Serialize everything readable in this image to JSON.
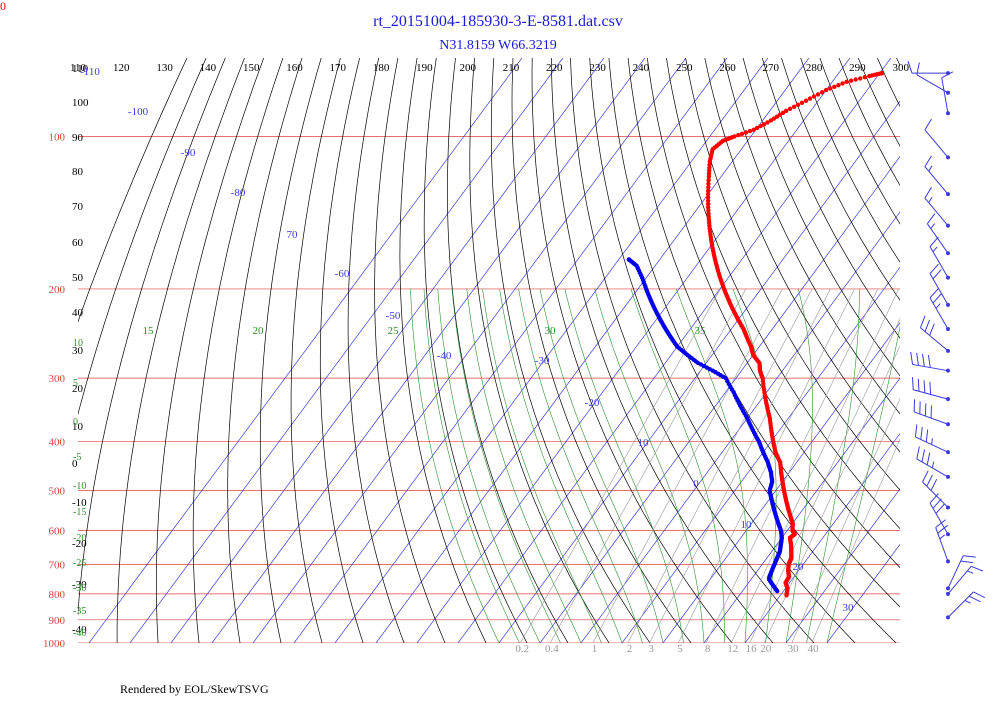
{
  "corner_label": "0",
  "footer": "Rendered by EOL/SkewTSVG",
  "chart_data": {
    "type": "skew-t log-p diagram",
    "title": "rt_20151004-185930-3-E-8581.dat.csv",
    "subtitle": "N31.8159 W66.3219",
    "colors": {
      "isobar": "#e04040",
      "isotherm": "#3b3bdc",
      "dry_adiabat": "#000000",
      "moist_adiabat": "#2f8f2f",
      "mixing_ratio": "#999999",
      "temperature": "#ff0000",
      "dewpoint": "#0000ee"
    },
    "pressure_levels_hPa": [
      "100",
      "200",
      "300",
      "400",
      "500",
      "600",
      "700",
      "800",
      "900",
      "1000"
    ],
    "isotherm_labels_C": [
      "-100",
      "-90",
      "-80",
      "70",
      "-60",
      "-50",
      "-40",
      "-30",
      "-20",
      "10",
      "0",
      "10",
      "20",
      "30"
    ],
    "theta_top_labels_K": [
      "110",
      "120",
      "130",
      "140",
      "150",
      "160",
      "170",
      "180",
      "190",
      "200",
      "210",
      "220",
      "230",
      "240",
      "250",
      "260",
      "270",
      "280",
      "290",
      "300"
    ],
    "left_dry_adiabat_labels": [
      "110",
      "100",
      "90",
      "80",
      "70",
      "60",
      "50",
      "40",
      "30",
      "20",
      "10",
      "0",
      "-10",
      "-20",
      "-30",
      "-40"
    ],
    "moist_labels": [
      "15",
      "20",
      "25",
      "30",
      "35"
    ],
    "moist_left_labels": [
      "10",
      "5",
      "0",
      "-5",
      "-10",
      "-15",
      "-20",
      "-25",
      "-30",
      "-35",
      "-40"
    ],
    "mixing_ratio_labels_gkg": [
      "0.2",
      "0.4",
      "1",
      "2",
      "3",
      "5",
      "8",
      "12",
      "16",
      "20",
      "30",
      "40"
    ],
    "temperature_profile": [
      {
        "p": 805,
        "t": 21.5
      },
      {
        "p": 780,
        "t": 20.5
      },
      {
        "p": 760,
        "t": 19.0
      },
      {
        "p": 740,
        "t": 18.8
      },
      {
        "p": 720,
        "t": 17.5
      },
      {
        "p": 700,
        "t": 16.5
      },
      {
        "p": 680,
        "t": 16.0
      },
      {
        "p": 660,
        "t": 14.8
      },
      {
        "p": 640,
        "t": 13.5
      },
      {
        "p": 620,
        "t": 12.0
      },
      {
        "p": 610,
        "t": 12.5
      },
      {
        "p": 600,
        "t": 11.3
      },
      {
        "p": 580,
        "t": 10.0
      },
      {
        "p": 560,
        "t": 8.0
      },
      {
        "p": 540,
        "t": 6.0
      },
      {
        "p": 520,
        "t": 4.0
      },
      {
        "p": 500,
        "t": 2.0
      },
      {
        "p": 480,
        "t": 0.0
      },
      {
        "p": 460,
        "t": -2.0
      },
      {
        "p": 440,
        "t": -4.0
      },
      {
        "p": 420,
        "t": -7.0
      },
      {
        "p": 400,
        "t": -9.5
      },
      {
        "p": 380,
        "t": -12.0
      },
      {
        "p": 360,
        "t": -14.5
      },
      {
        "p": 340,
        "t": -17.5
      },
      {
        "p": 320,
        "t": -20.5
      },
      {
        "p": 300,
        "t": -23.5
      },
      {
        "p": 290,
        "t": -25.5
      },
      {
        "p": 280,
        "t": -27.0
      },
      {
        "p": 270,
        "t": -30.0
      },
      {
        "p": 260,
        "t": -32.0
      },
      {
        "p": 250,
        "t": -34.5
      },
      {
        "p": 240,
        "t": -37.0
      },
      {
        "p": 230,
        "t": -40.0
      },
      {
        "p": 220,
        "t": -43.0
      },
      {
        "p": 210,
        "t": -46.0
      },
      {
        "p": 200,
        "t": -49.0
      },
      {
        "p": 190,
        "t": -52.0
      },
      {
        "p": 180,
        "t": -55.0
      },
      {
        "p": 170,
        "t": -58.0
      },
      {
        "p": 160,
        "t": -61.0
      },
      {
        "p": 150,
        "t": -64.0
      },
      {
        "p": 140,
        "t": -67.0
      },
      {
        "p": 130,
        "t": -70.0
      },
      {
        "p": 120,
        "t": -73.0
      },
      {
        "p": 112,
        "t": -75.5
      },
      {
        "p": 106,
        "t": -77.0
      },
      {
        "p": 102,
        "t": -76.0
      },
      {
        "p": 100,
        "t": -74.0
      },
      {
        "p": 97,
        "t": -70.5
      },
      {
        "p": 93,
        "t": -68.0
      },
      {
        "p": 89,
        "t": -66.0
      },
      {
        "p": 85,
        "t": -63.0
      },
      {
        "p": 81,
        "t": -60.0
      },
      {
        "p": 78,
        "t": -56.5
      },
      {
        "p": 76,
        "t": -52.0
      },
      {
        "p": 75,
        "t": -49.5
      }
    ],
    "dewpoint_profile": [
      {
        "p": 790,
        "t": 18.5
      },
      {
        "p": 770,
        "t": 16.5
      },
      {
        "p": 750,
        "t": 14.5
      },
      {
        "p": 740,
        "t": 14.0
      },
      {
        "p": 720,
        "t": 13.5
      },
      {
        "p": 700,
        "t": 13.0
      },
      {
        "p": 680,
        "t": 12.5
      },
      {
        "p": 660,
        "t": 12.0
      },
      {
        "p": 640,
        "t": 11.0
      },
      {
        "p": 620,
        "t": 10.0
      },
      {
        "p": 600,
        "t": 8.5
      },
      {
        "p": 580,
        "t": 6.5
      },
      {
        "p": 560,
        "t": 4.5
      },
      {
        "p": 540,
        "t": 2.5
      },
      {
        "p": 520,
        "t": 0.5
      },
      {
        "p": 500,
        "t": -1.5
      },
      {
        "p": 480,
        "t": -2.5
      },
      {
        "p": 460,
        "t": -4.5
      },
      {
        "p": 440,
        "t": -7.0
      },
      {
        "p": 420,
        "t": -10.0
      },
      {
        "p": 400,
        "t": -13.0
      },
      {
        "p": 380,
        "t": -16.5
      },
      {
        "p": 360,
        "t": -20.0
      },
      {
        "p": 340,
        "t": -24.0
      },
      {
        "p": 320,
        "t": -28.0
      },
      {
        "p": 300,
        "t": -32.5
      },
      {
        "p": 290,
        "t": -37.0
      },
      {
        "p": 280,
        "t": -42.0
      },
      {
        "p": 270,
        "t": -46.0
      },
      {
        "p": 260,
        "t": -50.0
      },
      {
        "p": 250,
        "t": -53.0
      },
      {
        "p": 240,
        "t": -56.0
      },
      {
        "p": 230,
        "t": -59.0
      },
      {
        "p": 220,
        "t": -62.0
      },
      {
        "p": 210,
        "t": -65.0
      },
      {
        "p": 200,
        "t": -68.0
      },
      {
        "p": 190,
        "t": -71.0
      },
      {
        "p": 180,
        "t": -74.5
      },
      {
        "p": 175,
        "t": -77.5
      }
    ],
    "wind_barbs": [
      {
        "p": 75,
        "dir": 270,
        "spd": 10
      },
      {
        "p": 82,
        "dir": 300,
        "spd": 10
      },
      {
        "p": 90,
        "dir": 350,
        "spd": 10
      },
      {
        "p": 110,
        "dir": 320,
        "spd": 10
      },
      {
        "p": 130,
        "dir": 320,
        "spd": 15
      },
      {
        "p": 150,
        "dir": 320,
        "spd": 15
      },
      {
        "p": 170,
        "dir": 325,
        "spd": 15
      },
      {
        "p": 190,
        "dir": 330,
        "spd": 15
      },
      {
        "p": 215,
        "dir": 330,
        "spd": 20
      },
      {
        "p": 240,
        "dir": 330,
        "spd": 25
      },
      {
        "p": 265,
        "dir": 310,
        "spd": 30
      },
      {
        "p": 290,
        "dir": 280,
        "spd": 40
      },
      {
        "p": 330,
        "dir": 285,
        "spd": 40
      },
      {
        "p": 370,
        "dir": 290,
        "spd": 40
      },
      {
        "p": 420,
        "dir": 295,
        "spd": 35
      },
      {
        "p": 470,
        "dir": 300,
        "spd": 35
      },
      {
        "p": 540,
        "dir": 315,
        "spd": 30
      },
      {
        "p": 610,
        "dir": 330,
        "spd": 30
      },
      {
        "p": 690,
        "dir": 340,
        "spd": 25
      },
      {
        "p": 780,
        "dir": 25,
        "spd": 20
      },
      {
        "p": 800,
        "dir": 40,
        "spd": 15
      },
      {
        "p": 890,
        "dir": 45,
        "spd": 25
      }
    ]
  }
}
